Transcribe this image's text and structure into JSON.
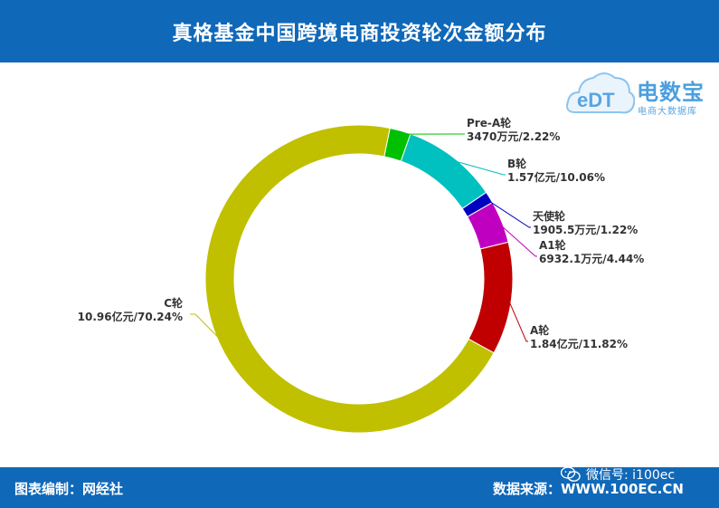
{
  "header": {
    "title": "真格基金中国跨境电商投资轮次金额分布"
  },
  "logo": {
    "emblem": "eDT",
    "word": "电数宝",
    "sub": "电商大数据库"
  },
  "footer": {
    "credit": "图表编制：网经社",
    "source": "数据来源：WWW.100EC.CN",
    "wechat": "微信号: i100ec"
  },
  "chart_data": {
    "type": "pie",
    "donut": true,
    "title": "真格基金中国跨境电商投资轮次金额分布",
    "slices": [
      {
        "name": "Pre-A轮",
        "value_text": "3470万元/2.22%",
        "percent": 2.22,
        "color": "#00c000"
      },
      {
        "name": "B轮",
        "value_text": "1.57亿元/10.06%",
        "percent": 10.06,
        "color": "#00c0c0"
      },
      {
        "name": "天使轮",
        "value_text": "1905.5万元/1.22%",
        "percent": 1.22,
        "color": "#0000c0"
      },
      {
        "name": "A1轮",
        "value_text": "6932.1万元/4.44%",
        "percent": 4.44,
        "color": "#c000c0"
      },
      {
        "name": "A轮",
        "value_text": "1.84亿元/11.82%",
        "percent": 11.82,
        "color": "#c00000"
      },
      {
        "name": "C轮",
        "value_text": "10.96亿元/70.24%",
        "percent": 70.24,
        "color": "#c0c000"
      }
    ]
  }
}
